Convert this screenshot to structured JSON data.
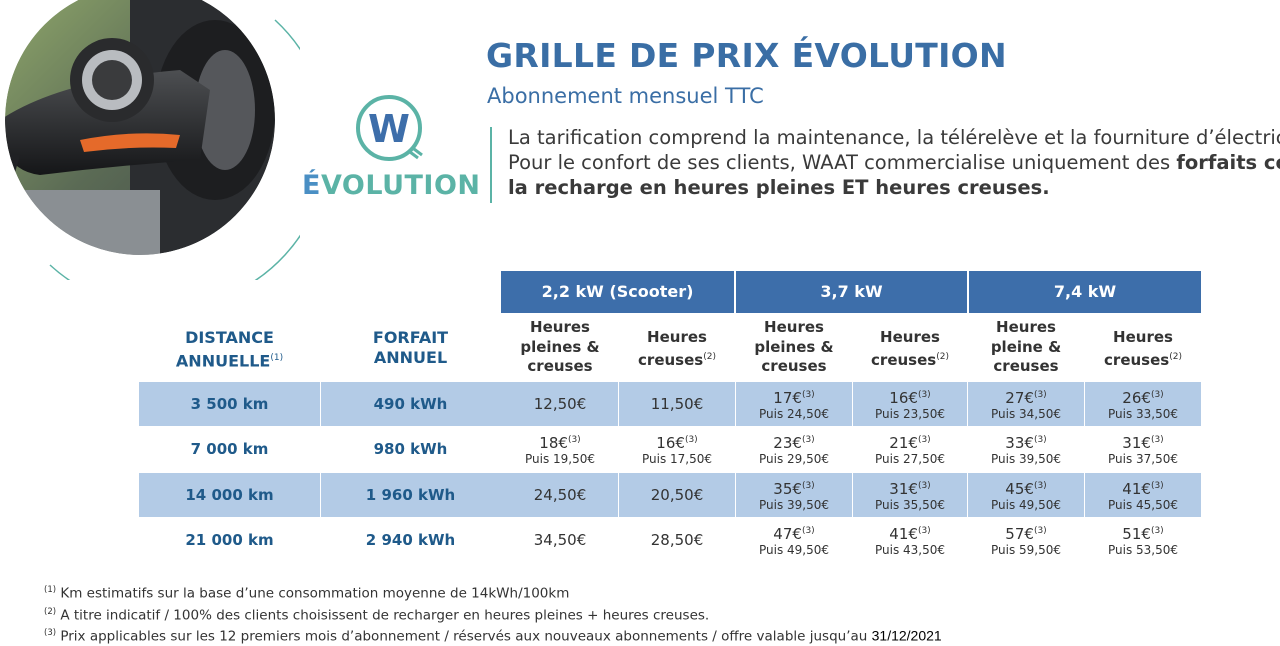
{
  "header": {
    "title": "GRILLE DE PRIX ÉVOLUTION",
    "subtitle": "Abonnement mensuel TTC",
    "desc_line1": "La tarification comprend la maintenance, la télérelève et la fourniture d’électricité.",
    "desc_line2_plain": "Pour le confort de ses clients, WAAT commercialise uniquement des ",
    "desc_line2_bold": "forfaits compren",
    "desc_line3_bold": "la recharge en heures pleines ET heures creuses."
  },
  "logo": {
    "letter": "W",
    "name_first": "É",
    "name_rest": "VOLUTION",
    "icon": "plug-w-icon"
  },
  "photo": {
    "icon": "ev-charger-plug-photo"
  },
  "table": {
    "powers": [
      "2,2 kW (Scooter)",
      "3,7 kW",
      "7,4 kW"
    ],
    "col_distance": {
      "line1": "DISTANCE",
      "line2": "ANNUELLE",
      "sup": "(1)"
    },
    "col_forfait": {
      "line1": "FORFAIT",
      "line2": "ANNUEL"
    },
    "sub_headers": [
      {
        "lines": [
          "Heures",
          "pleines &",
          "creuses"
        ],
        "sup": ""
      },
      {
        "lines": [
          "Heures",
          "creuses"
        ],
        "sup": "(2)"
      },
      {
        "lines": [
          "Heures",
          "pleines &",
          "creuses"
        ],
        "sup": ""
      },
      {
        "lines": [
          "Heures",
          "creuses"
        ],
        "sup": "(2)"
      },
      {
        "lines": [
          "Heures",
          "pleine &",
          "creuses"
        ],
        "sup": ""
      },
      {
        "lines": [
          "Heures",
          "creuses"
        ],
        "sup": "(2)"
      }
    ],
    "rows": [
      {
        "distance": "3 500 km",
        "forfait": "490 kWh",
        "prices": [
          {
            "main": "12,50€",
            "sup": "",
            "sub": ""
          },
          {
            "main": "11,50€",
            "sup": "",
            "sub": ""
          },
          {
            "main": "17€",
            "sup": "(3)",
            "sub": "Puis 24,50€"
          },
          {
            "main": "16€",
            "sup": "(3)",
            "sub": "Puis 23,50€"
          },
          {
            "main": "27€",
            "sup": "(3)",
            "sub": "Puis 34,50€"
          },
          {
            "main": "26€",
            "sup": "(3)",
            "sub": "Puis 33,50€"
          }
        ]
      },
      {
        "distance": "7 000 km",
        "forfait": "980 kWh",
        "prices": [
          {
            "main": "18€",
            "sup": "(3)",
            "sub": "Puis 19,50€"
          },
          {
            "main": "16€",
            "sup": "(3)",
            "sub": "Puis 17,50€"
          },
          {
            "main": "23€",
            "sup": "(3)",
            "sub": "Puis 29,50€"
          },
          {
            "main": "21€",
            "sup": "(3)",
            "sub": "Puis 27,50€"
          },
          {
            "main": "33€",
            "sup": "(3)",
            "sub": "Puis 39,50€"
          },
          {
            "main": "31€",
            "sup": "(3)",
            "sub": "Puis 37,50€"
          }
        ]
      },
      {
        "distance": "14 000 km",
        "forfait": "1 960 kWh",
        "prices": [
          {
            "main": "24,50€",
            "sup": "",
            "sub": ""
          },
          {
            "main": "20,50€",
            "sup": "",
            "sub": ""
          },
          {
            "main": "35€",
            "sup": "(3)",
            "sub": "Puis 39,50€"
          },
          {
            "main": "31€",
            "sup": "(3)",
            "sub": "Puis 35,50€"
          },
          {
            "main": "45€",
            "sup": "(3)",
            "sub": "Puis 49,50€"
          },
          {
            "main": "41€",
            "sup": "(3)",
            "sub": "Puis 45,50€"
          }
        ]
      },
      {
        "distance": "21 000 km",
        "forfait": "2 940 kWh",
        "prices": [
          {
            "main": "34,50€",
            "sup": "",
            "sub": ""
          },
          {
            "main": "28,50€",
            "sup": "",
            "sub": ""
          },
          {
            "main": "47€",
            "sup": "(3)",
            "sub": "Puis 49,50€"
          },
          {
            "main": "41€",
            "sup": "(3)",
            "sub": "Puis 43,50€"
          },
          {
            "main": "57€",
            "sup": "(3)",
            "sub": "Puis 59,50€"
          },
          {
            "main": "51€",
            "sup": "(3)",
            "sub": "Puis 53,50€"
          }
        ]
      }
    ]
  },
  "notes": [
    {
      "sup": "(1)",
      "text": " Km estimatifs sur la base d’une consommation moyenne de 14kWh/100km",
      "date": ""
    },
    {
      "sup": "(2)",
      "text": " A titre indicatif / 100% des clients choisissent de recharger en heures pleines + heures creuses.",
      "date": ""
    },
    {
      "sup": "(3)",
      "text": " Prix applicables sur les 12 premiers mois d’abonnement / réservés aux nouveaux abonnements / offre valable jusqu’au ",
      "date": "31/12/2021"
    }
  ],
  "colors": {
    "brand_blue": "#3a6ea5",
    "header_blue": "#3d6eaa",
    "band_blue": "#b3cbe6",
    "teal": "#5bb3a6"
  }
}
